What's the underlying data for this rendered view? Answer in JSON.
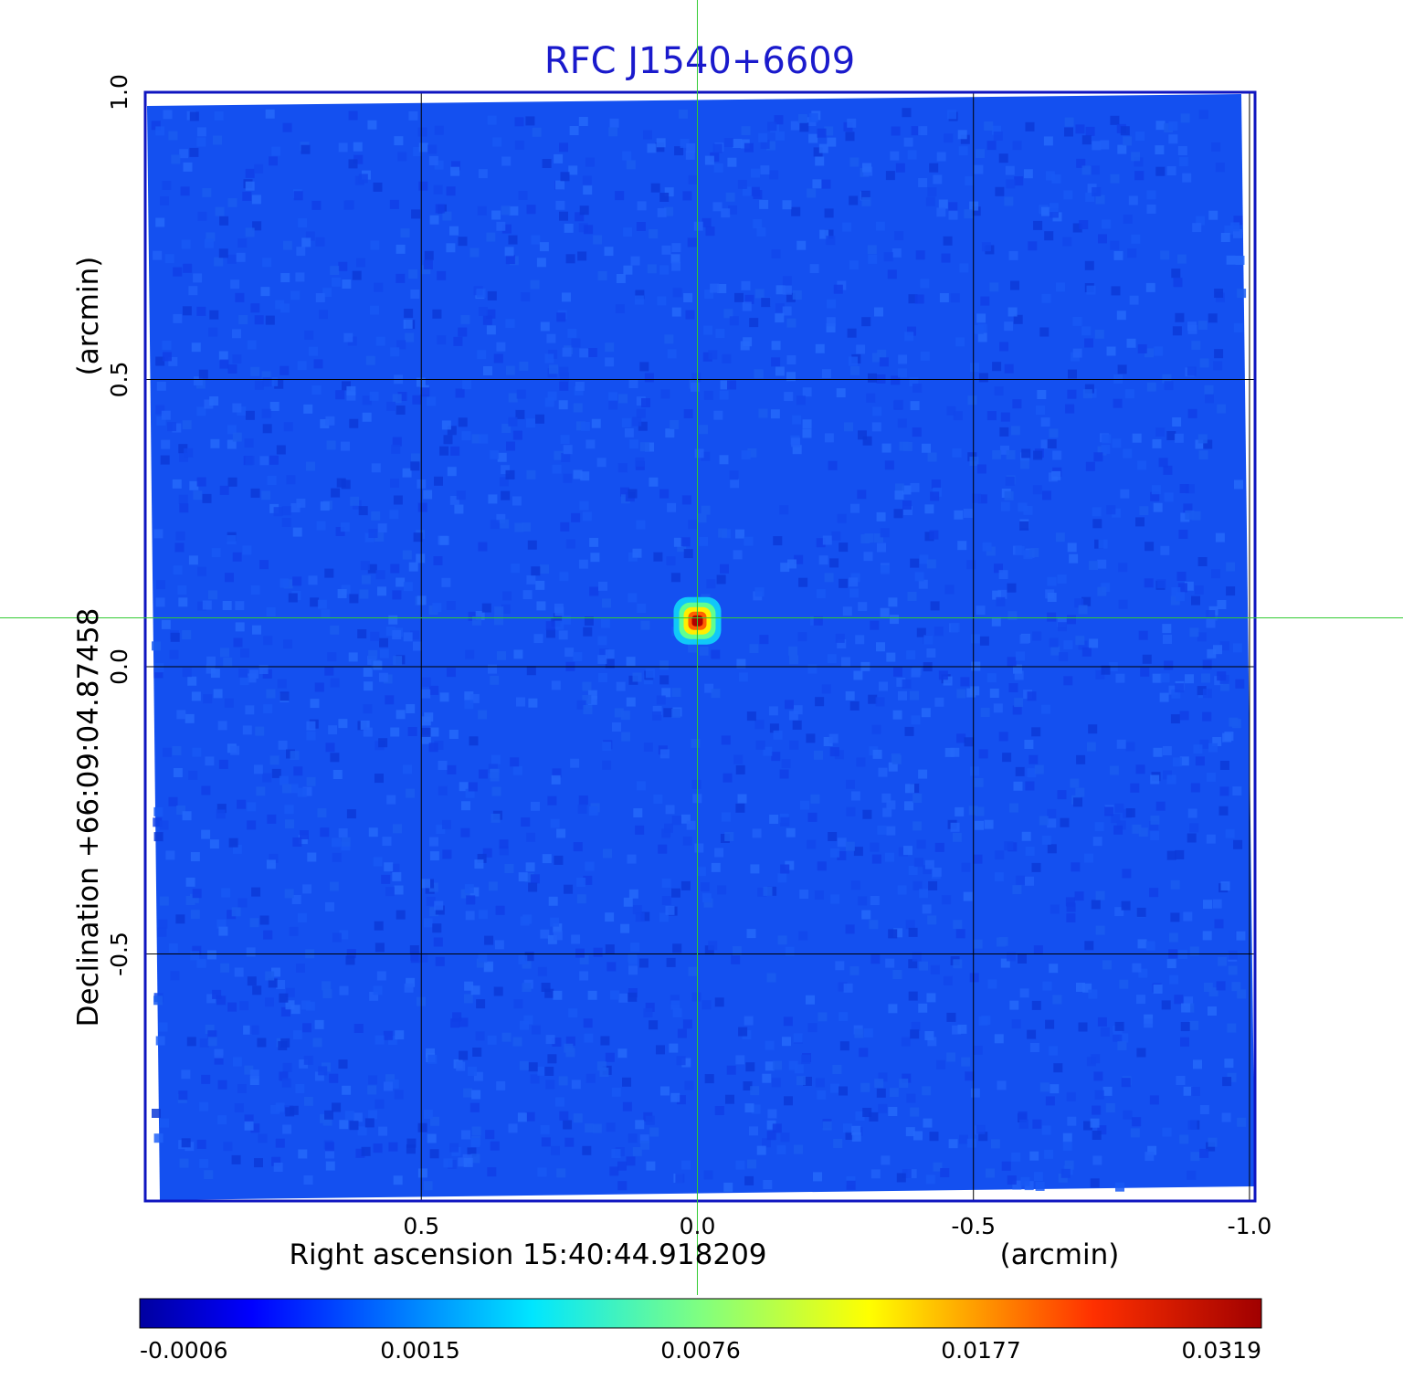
{
  "chart_data": {
    "type": "heatmap",
    "title": "RFC J1540+6609",
    "xlabel": "Right ascension  15:40:44.918209",
    "xunit": "(arcmin)",
    "ylabel": "Declination  +66:09:04.87458",
    "yunit": "(arcmin)",
    "x_axis": {
      "ticks": [
        0.5,
        0.0,
        -0.5,
        -1.0
      ],
      "tick_labels": [
        "0.5",
        "0.0",
        "-0.5",
        "-1.0"
      ],
      "range": [
        1.0,
        -1.01
      ],
      "reversed": true
    },
    "y_axis": {
      "ticks": [
        1.0,
        0.5,
        0.0,
        -0.5
      ],
      "tick_labels": [
        "1.0",
        "0.5",
        "0.0",
        "-0.5"
      ],
      "range": [
        -0.93,
        1.0
      ]
    },
    "grid": true,
    "crosshair": {
      "x": 0.0,
      "y": 0.085,
      "color": "#33cc33"
    },
    "source_peak": {
      "x": 0.0,
      "y": 0.08,
      "value": 0.0319
    },
    "background_level": 0.0,
    "colormap": "jet",
    "colorbar": {
      "orientation": "horizontal",
      "placement": "bottom",
      "tick_labels": [
        "-0.0006",
        "0.0015",
        "0.0076",
        "0.0177",
        "0.0319"
      ],
      "min": -0.0006,
      "max": 0.0319
    }
  },
  "colors": {
    "title": "#1a1acc",
    "frame": "#0f15c0",
    "grid": "#000000",
    "crosshair": "#33cc33",
    "background_map": "#1450f0"
  }
}
